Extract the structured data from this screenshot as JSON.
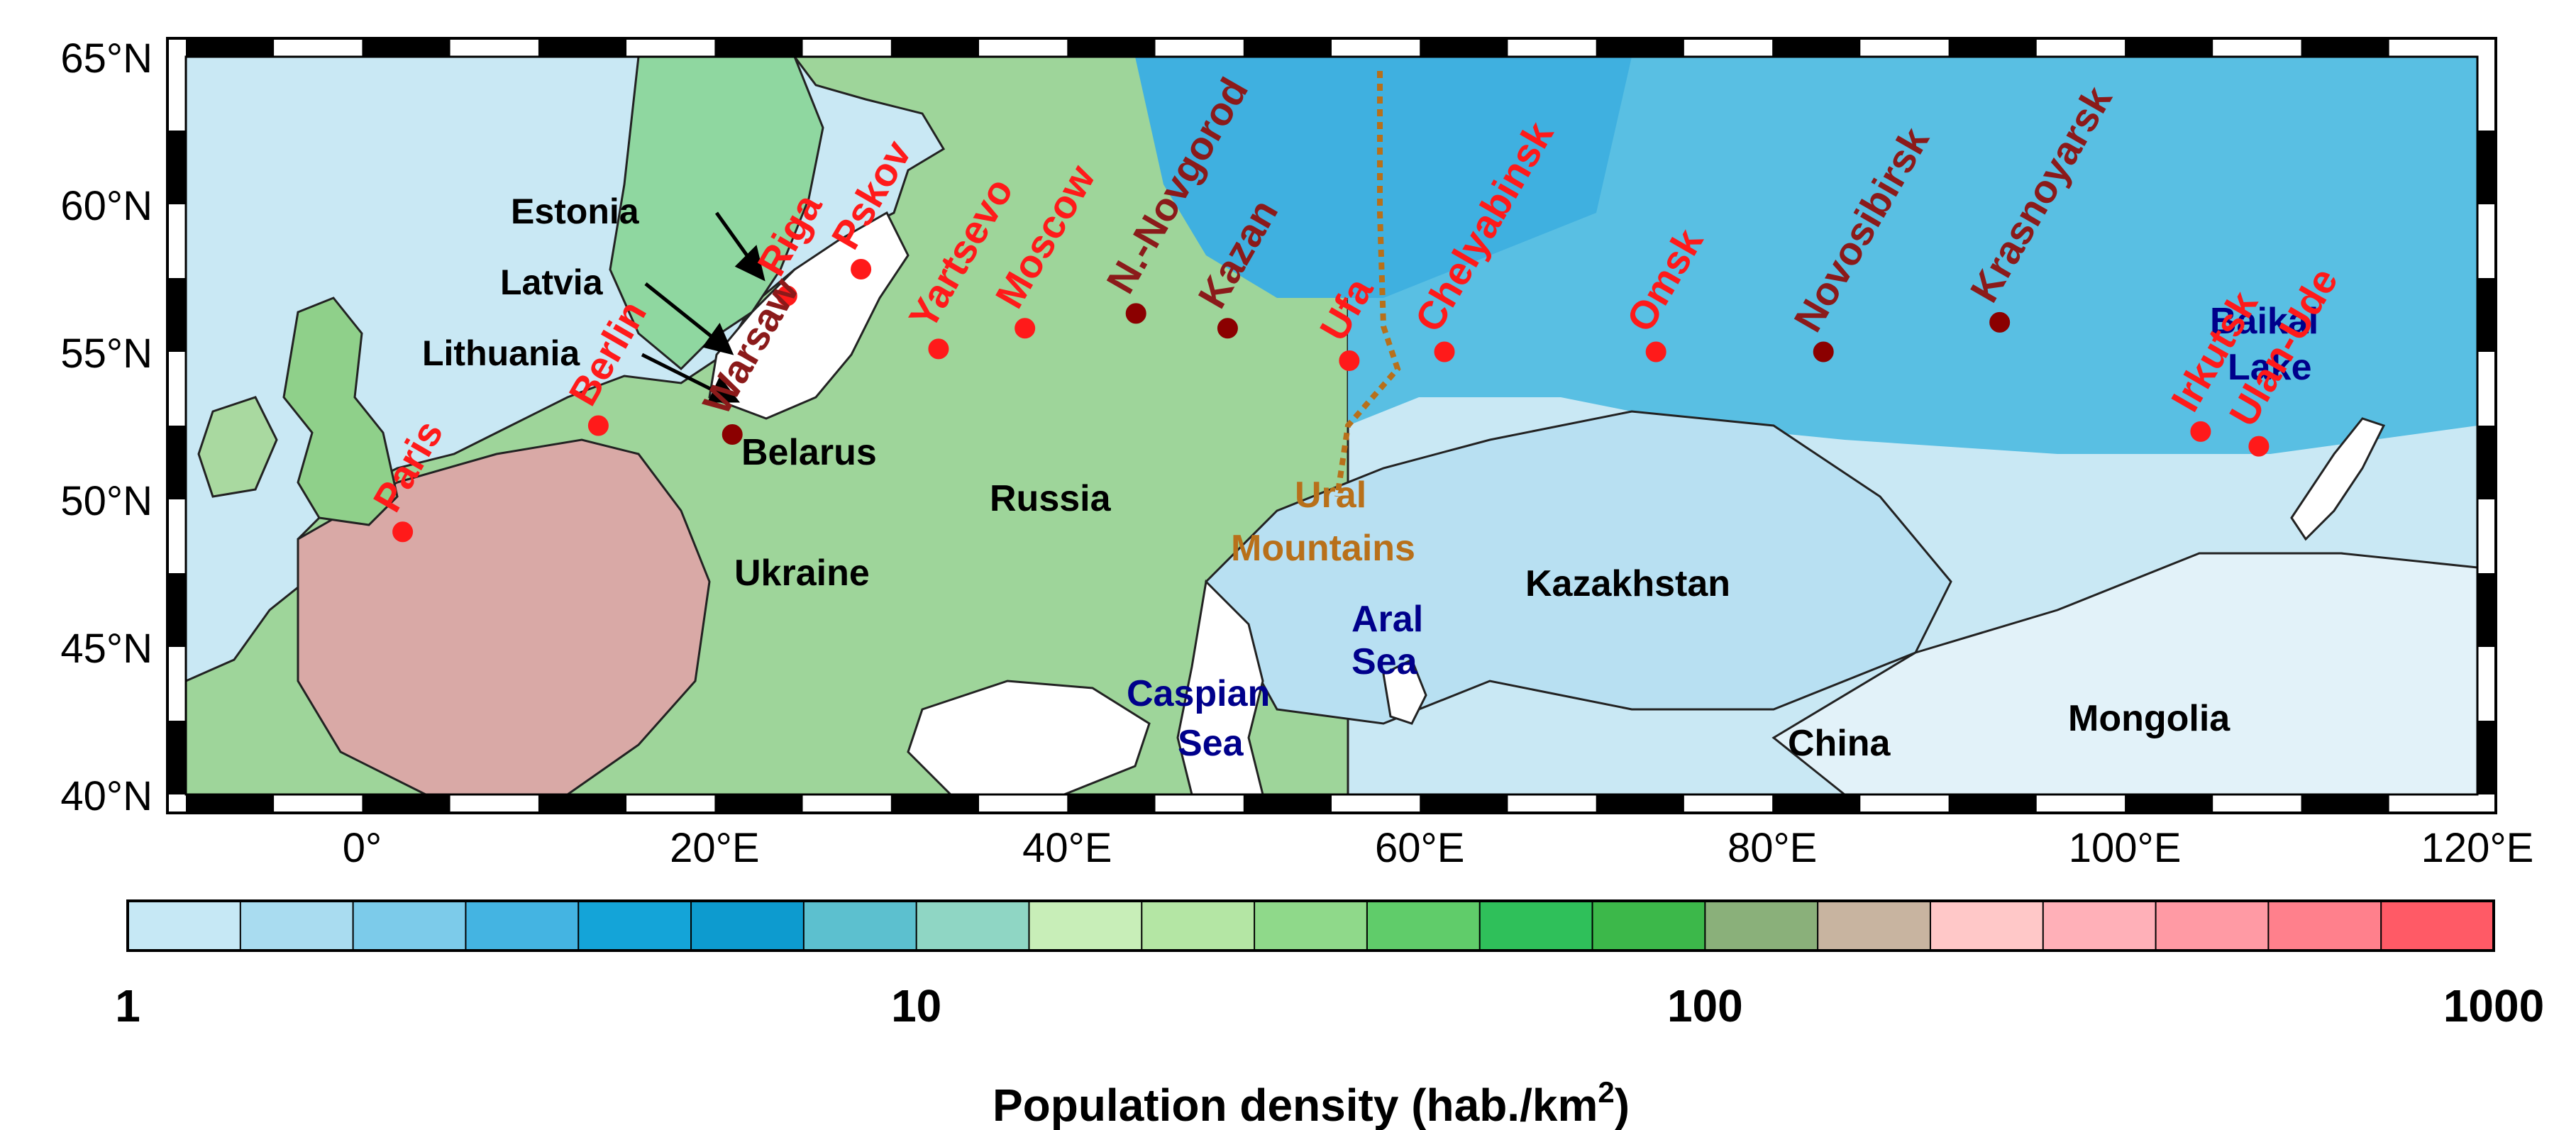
{
  "map": {
    "lat_labels": [
      {
        "value": 65,
        "text": "65°N"
      },
      {
        "value": 60,
        "text": "60°N"
      },
      {
        "value": 55,
        "text": "55°N"
      },
      {
        "value": 50,
        "text": "50°N"
      },
      {
        "value": 45,
        "text": "45°N"
      },
      {
        "value": 40,
        "text": "40°N"
      }
    ],
    "lon_labels": [
      {
        "value": 0,
        "text": "0°"
      },
      {
        "value": 20,
        "text": "20°E"
      },
      {
        "value": 40,
        "text": "40°E"
      },
      {
        "value": 60,
        "text": "60°E"
      },
      {
        "value": 80,
        "text": "80°E"
      },
      {
        "value": 100,
        "text": "100°E"
      },
      {
        "value": 120,
        "text": "120°E"
      }
    ],
    "extent": {
      "lon_min": -10,
      "lon_max": 120,
      "lat_min": 40,
      "lat_max": 65
    },
    "cities": [
      {
        "name": "Paris",
        "lon": 2.3,
        "lat": 48.9,
        "color": "#ff1a1a",
        "label_color": "#ff1a1a",
        "rotate": true
      },
      {
        "name": "Berlin",
        "lon": 13.4,
        "lat": 52.5,
        "color": "#ff1a1a",
        "label_color": "#ff1a1a",
        "rotate": true
      },
      {
        "name": "Warsaw",
        "lon": 21.0,
        "lat": 52.2,
        "color": "#8b0000",
        "label_color": "#8b1a1a",
        "rotate": true
      },
      {
        "name": "Riga",
        "lon": 24.1,
        "lat": 56.9,
        "color": "#ff1a1a",
        "label_color": "#ff1a1a",
        "rotate": true
      },
      {
        "name": "Pskov",
        "lon": 28.3,
        "lat": 57.8,
        "color": "#ff1a1a",
        "label_color": "#ff1a1a",
        "rotate": true
      },
      {
        "name": "Yartsevo",
        "lon": 32.7,
        "lat": 55.1,
        "color": "#ff1a1a",
        "label_color": "#ff1a1a",
        "rotate": true
      },
      {
        "name": "Moscow",
        "lon": 37.6,
        "lat": 55.8,
        "color": "#ff1a1a",
        "label_color": "#ff1a1a",
        "rotate": true
      },
      {
        "name": "N.-Novgorod",
        "lon": 43.9,
        "lat": 56.3,
        "color": "#8b0000",
        "label_color": "#8b1a1a",
        "rotate": true
      },
      {
        "name": "Kazan",
        "lon": 49.1,
        "lat": 55.8,
        "color": "#8b0000",
        "label_color": "#8b1a1a",
        "rotate": true
      },
      {
        "name": "Ufa",
        "lon": 56.0,
        "lat": 54.7,
        "color": "#ff1a1a",
        "label_color": "#ff1a1a",
        "rotate": true
      },
      {
        "name": "Chelyabinsk",
        "lon": 61.4,
        "lat": 55.0,
        "color": "#ff1a1a",
        "label_color": "#ff1a1a",
        "rotate": true
      },
      {
        "name": "Omsk",
        "lon": 73.4,
        "lat": 55.0,
        "color": "#ff1a1a",
        "label_color": "#ff1a1a",
        "rotate": true
      },
      {
        "name": "Novosibirsk",
        "lon": 82.9,
        "lat": 55.0,
        "color": "#8b0000",
        "label_color": "#8b1a1a",
        "rotate": true
      },
      {
        "name": "Krasnoyarsk",
        "lon": 92.9,
        "lat": 56.0,
        "color": "#8b0000",
        "label_color": "#8b1a1a",
        "rotate": true
      },
      {
        "name": "Irkutsk",
        "lon": 104.3,
        "lat": 52.3,
        "color": "#ff1a1a",
        "label_color": "#ff1a1a",
        "rotate": true
      },
      {
        "name": "Ulan-Ude",
        "lon": 107.6,
        "lat": 51.8,
        "color": "#ff1a1a",
        "label_color": "#ff1a1a",
        "rotate": true
      }
    ],
    "regions": [
      {
        "name": "Estonia",
        "color": "#000000"
      },
      {
        "name": "Latvia",
        "color": "#000000"
      },
      {
        "name": "Lithuania",
        "color": "#000000"
      },
      {
        "name": "Belarus",
        "color": "#000000"
      },
      {
        "name": "Russia",
        "color": "#000000"
      },
      {
        "name": "Ukraine",
        "color": "#000000"
      },
      {
        "name": "Kazakhstan",
        "color": "#000000"
      },
      {
        "name": "China",
        "color": "#000000"
      },
      {
        "name": "Mongolia",
        "color": "#000000"
      }
    ],
    "water": [
      {
        "name": "Baikal",
        "name2": "Lake",
        "color": "#00008b"
      },
      {
        "name": "Aral",
        "name2": "Sea",
        "color": "#00008b"
      },
      {
        "name": "Caspian",
        "name2": "Sea",
        "color": "#00008b"
      }
    ],
    "ural": {
      "line1": "Ural",
      "line2": "Mountains",
      "color": "#b8701a"
    }
  },
  "colorbar": {
    "ticks": [
      {
        "value": 1,
        "text": "1"
      },
      {
        "value": 10,
        "text": "10"
      },
      {
        "value": 100,
        "text": "100"
      },
      {
        "value": 1000,
        "text": "1000"
      }
    ],
    "title": "Population density (hab./km",
    "title_sup": "2",
    "title_end": ")",
    "scale": "log",
    "range": [
      1,
      1000
    ],
    "colors": [
      "#c6e8f5",
      "#a9dcf0",
      "#7ccbea",
      "#44b4e2",
      "#14a4d8",
      "#0d9bcf",
      "#5cc0cf",
      "#8fd6c4",
      "#c8eeb8",
      "#b4e6a4",
      "#8fd98a",
      "#60cc6a",
      "#2fc05a",
      "#3cb84a",
      "#8ab07a",
      "#c8b4a0",
      "#ffc8c8",
      "#ffb0b8",
      "#ff9aa4",
      "#ff808c",
      "#ff5a66"
    ]
  }
}
